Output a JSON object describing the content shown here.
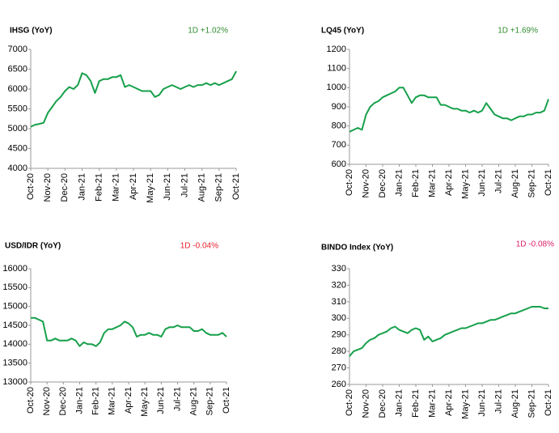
{
  "chart_data": [
    {
      "type": "line",
      "title": "IHSG (YoY)",
      "annotation": "1D +1.02%",
      "annotation_color": "#2e8b2e",
      "color": "#16a04a",
      "categories": [
        "Oct-20",
        null,
        null,
        null,
        "Nov-20",
        null,
        null,
        null,
        "Dec-20",
        null,
        null,
        null,
        "Jan-21",
        null,
        null,
        null,
        "Feb-21",
        null,
        null,
        null,
        "Mar-21",
        null,
        null,
        null,
        "Apr-21",
        null,
        null,
        null,
        "May-21",
        null,
        null,
        null,
        "Jun-21",
        null,
        null,
        null,
        "Jul-21",
        null,
        null,
        null,
        "Aug-21",
        null,
        null,
        null,
        "Sep-21",
        null,
        null,
        null,
        "Oct-21"
      ],
      "values": [
        5050,
        5100,
        5120,
        5150,
        5400,
        5550,
        5700,
        5800,
        5950,
        6050,
        6000,
        6100,
        6400,
        6350,
        6200,
        5900,
        6200,
        6250,
        6250,
        6300,
        6300,
        6350,
        6050,
        6100,
        6050,
        6000,
        5950,
        5950,
        5950,
        5800,
        5850,
        6000,
        6050,
        6100,
        6050,
        6000,
        6050,
        6100,
        6050,
        6100,
        6100,
        6150,
        6100,
        6150,
        6100,
        6150,
        6200,
        6250,
        6450
      ],
      "ylim": [
        4000,
        7000
      ],
      "yticks": [
        4000,
        4500,
        5000,
        5500,
        6000,
        6500,
        7000
      ],
      "grid": false
    },
    {
      "type": "line",
      "title": "LQ45 (YoY)",
      "annotation": "1D +1.69%",
      "annotation_color": "#2e8b2e",
      "color": "#16a04a",
      "categories": [
        "Oct-20",
        null,
        null,
        null,
        "Nov-20",
        null,
        null,
        null,
        "Dec-20",
        null,
        null,
        null,
        "Jan-21",
        null,
        null,
        null,
        "Feb-21",
        null,
        null,
        null,
        "Mar-21",
        null,
        null,
        null,
        "Apr-21",
        null,
        null,
        null,
        "May-21",
        null,
        null,
        null,
        "Jun-21",
        null,
        null,
        null,
        "Jul-21",
        null,
        null,
        null,
        "Aug-21",
        null,
        null,
        null,
        "Sep-21",
        null,
        null,
        null,
        "Oct-21"
      ],
      "values": [
        770,
        780,
        790,
        780,
        860,
        900,
        920,
        930,
        950,
        960,
        970,
        980,
        1000,
        1000,
        960,
        920,
        950,
        960,
        960,
        950,
        950,
        950,
        910,
        910,
        900,
        890,
        890,
        880,
        880,
        870,
        880,
        870,
        880,
        920,
        890,
        860,
        850,
        840,
        840,
        830,
        840,
        850,
        850,
        860,
        860,
        870,
        870,
        880,
        940
      ],
      "ylim": [
        600,
        1200
      ],
      "yticks": [
        600,
        700,
        800,
        900,
        1000,
        1100,
        1200
      ],
      "grid": false
    },
    {
      "type": "line",
      "title": "USD/IDR  (YoY)",
      "annotation": "1D -0.04%",
      "annotation_color": "#e8202a",
      "color": "#16a04a",
      "categories": [
        "Oct-20",
        null,
        null,
        null,
        "Nov-20",
        null,
        null,
        null,
        "Dec-20",
        null,
        null,
        null,
        "Jan-21",
        null,
        null,
        null,
        "Feb-21",
        null,
        null,
        null,
        "Mar-21",
        null,
        null,
        null,
        "Apr-21",
        null,
        null,
        null,
        "May-21",
        null,
        null,
        null,
        "Jun-21",
        null,
        null,
        null,
        "Jul-21",
        null,
        null,
        null,
        "Aug-21",
        null,
        null,
        null,
        "Sep-21",
        null,
        null,
        null,
        "Oct-21"
      ],
      "values": [
        14700,
        14700,
        14650,
        14600,
        14100,
        14100,
        14150,
        14100,
        14100,
        14100,
        14150,
        14100,
        13950,
        14050,
        14000,
        14000,
        13950,
        14050,
        14300,
        14400,
        14400,
        14450,
        14500,
        14600,
        14550,
        14450,
        14200,
        14250,
        14250,
        14300,
        14250,
        14250,
        14200,
        14400,
        14450,
        14450,
        14500,
        14450,
        14450,
        14450,
        14350,
        14350,
        14400,
        14300,
        14250,
        14250,
        14250,
        14300,
        14200
      ],
      "ylim": [
        13000,
        16000
      ],
      "yticks": [
        13000,
        13500,
        14000,
        14500,
        15000,
        15500,
        16000
      ],
      "grid": false
    },
    {
      "type": "line",
      "title": "BINDO Index (YoY)",
      "annotation": "1D -0.08%",
      "annotation_color": "#e0206a",
      "color": "#16a04a",
      "categories": [
        "Oct-20",
        null,
        null,
        null,
        "Nov-20",
        null,
        null,
        null,
        "Dec-20",
        null,
        null,
        null,
        "Jan-21",
        null,
        null,
        null,
        "Feb-21",
        null,
        null,
        null,
        "Mar-21",
        null,
        null,
        null,
        "Apr-21",
        null,
        null,
        null,
        "May-21",
        null,
        null,
        null,
        "Jun-21",
        null,
        null,
        null,
        "Jul-21",
        null,
        null,
        null,
        "Aug-21",
        null,
        null,
        null,
        "Sep-21",
        null,
        null,
        null,
        "Oct-21"
      ],
      "values": [
        277,
        280,
        281,
        282,
        285,
        287,
        288,
        290,
        291,
        292,
        294,
        295,
        293,
        292,
        291,
        293,
        294,
        293,
        287,
        289,
        286,
        287,
        288,
        290,
        291,
        292,
        293,
        294,
        294,
        295,
        296,
        297,
        297,
        298,
        299,
        299,
        300,
        301,
        302,
        303,
        303,
        304,
        305,
        306,
        307,
        307,
        307,
        306,
        306
      ],
      "ylim": [
        260,
        330
      ],
      "yticks": [
        260,
        270,
        280,
        290,
        300,
        310,
        320,
        330
      ],
      "grid": false
    }
  ]
}
